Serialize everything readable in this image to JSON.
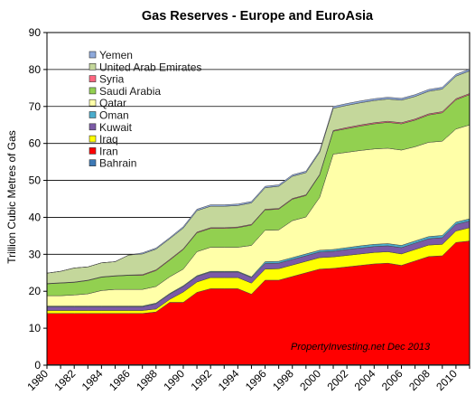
{
  "chart_data": {
    "type": "area",
    "stacked": true,
    "title": "Gas Reserves - Europe and EuroAsia",
    "ylabel": "Trillion Cubic Metres of Gas",
    "xlabel": "",
    "annotation": "PropertyInvesting.net Dec 2013",
    "grid": true,
    "legend_position": "top-left",
    "xlim": [
      1980,
      2011
    ],
    "ylim": [
      0,
      90
    ],
    "x_ticks": [
      "1980",
      "1982",
      "1984",
      "1986",
      "1988",
      "1990",
      "1992",
      "1994",
      "1996",
      "1998",
      "2000",
      "2002",
      "2004",
      "2006",
      "2008",
      "2010"
    ],
    "y_ticks": [
      "0",
      "10",
      "20",
      "30",
      "40",
      "50",
      "60",
      "70",
      "80",
      "90"
    ],
    "legend_order": [
      "Yemen",
      "United Arab Emirates",
      "Syria",
      "Saudi Arabia",
      "Qatar",
      "Oman",
      "Kuwait",
      "Iraq",
      "Iran",
      "Bahrain"
    ],
    "x": [
      1980,
      1981,
      1982,
      1983,
      1984,
      1985,
      1986,
      1987,
      1988,
      1989,
      1990,
      1991,
      1992,
      1993,
      1994,
      1995,
      1996,
      1997,
      1998,
      1999,
      2000,
      2001,
      2002,
      2003,
      2004,
      2005,
      2006,
      2007,
      2008,
      2009,
      2010,
      2011
    ],
    "series": [
      {
        "name": "Bahrain",
        "color": "#3d79b6",
        "values": [
          0.2,
          0.2,
          0.2,
          0.2,
          0.2,
          0.2,
          0.2,
          0.2,
          0.2,
          0.2,
          0.2,
          0.2,
          0.2,
          0.2,
          0.2,
          0.2,
          0.2,
          0.2,
          0.2,
          0.2,
          0.2,
          0.2,
          0.2,
          0.2,
          0.2,
          0.2,
          0.2,
          0.2,
          0.2,
          0.2,
          0.2,
          0.2
        ]
      },
      {
        "name": "Iran",
        "color": "#ff0000",
        "values": [
          13.8,
          13.8,
          13.8,
          13.8,
          13.8,
          13.8,
          13.8,
          13.8,
          14.2,
          16.8,
          16.8,
          19.5,
          20.5,
          20.5,
          20.5,
          19.0,
          22.8,
          22.8,
          23.8,
          24.8,
          25.8,
          26.0,
          26.4,
          26.8,
          27.2,
          27.4,
          26.8,
          28.0,
          29.2,
          29.4,
          33.0,
          33.4
        ]
      },
      {
        "name": "Iraq",
        "color": "#ffff00",
        "values": [
          0.8,
          0.8,
          0.8,
          0.8,
          0.8,
          0.8,
          0.8,
          0.8,
          0.8,
          0.8,
          2.8,
          2.8,
          3.0,
          3.0,
          3.0,
          3.0,
          3.0,
          3.1,
          3.1,
          3.1,
          3.1,
          3.1,
          3.1,
          3.1,
          3.1,
          3.1,
          3.1,
          3.1,
          3.1,
          3.1,
          3.1,
          3.6
        ]
      },
      {
        "name": "Kuwait",
        "color": "#7b5aa6",
        "values": [
          1.0,
          1.0,
          1.0,
          1.0,
          1.0,
          1.0,
          1.0,
          1.0,
          1.4,
          1.4,
          1.5,
          1.5,
          1.5,
          1.5,
          1.5,
          1.5,
          1.5,
          1.5,
          1.5,
          1.5,
          1.5,
          1.5,
          1.6,
          1.6,
          1.6,
          1.6,
          1.7,
          1.7,
          1.7,
          1.8,
          1.8,
          1.8
        ]
      },
      {
        "name": "Oman",
        "color": "#4aaccc",
        "values": [
          0.2,
          0.2,
          0.2,
          0.2,
          0.2,
          0.2,
          0.2,
          0.2,
          0.2,
          0.2,
          0.2,
          0.2,
          0.2,
          0.2,
          0.2,
          0.2,
          0.5,
          0.5,
          0.5,
          0.5,
          0.5,
          0.5,
          0.5,
          0.6,
          0.6,
          0.6,
          0.6,
          0.6,
          0.6,
          0.6,
          0.6,
          0.6
        ]
      },
      {
        "name": "Qatar",
        "color": "#ffffa8",
        "values": [
          2.8,
          2.8,
          3.0,
          3.3,
          4.2,
          4.5,
          4.5,
          4.5,
          4.5,
          4.5,
          4.5,
          6.5,
          6.5,
          6.5,
          6.5,
          8.5,
          8.5,
          8.5,
          10.0,
          10.0,
          14.3,
          25.8,
          25.8,
          25.8,
          25.8,
          25.8,
          25.8,
          25.5,
          25.5,
          25.5,
          25.2,
          25.4
        ]
      },
      {
        "name": "Saudi Arabia",
        "color": "#92d050",
        "values": [
          3.2,
          3.4,
          3.4,
          3.6,
          3.6,
          3.6,
          3.8,
          3.8,
          4.3,
          4.5,
          5.3,
          5.1,
          5.1,
          5.1,
          5.3,
          5.5,
          5.5,
          5.6,
          5.8,
          5.8,
          6.0,
          6.2,
          6.4,
          6.6,
          6.8,
          7.0,
          7.1,
          7.2,
          7.4,
          7.7,
          7.9,
          8.2
        ]
      },
      {
        "name": "Syria",
        "color": "#ff6680",
        "values": [
          0.1,
          0.1,
          0.1,
          0.1,
          0.1,
          0.1,
          0.1,
          0.2,
          0.2,
          0.2,
          0.2,
          0.2,
          0.2,
          0.2,
          0.2,
          0.2,
          0.2,
          0.2,
          0.2,
          0.2,
          0.2,
          0.2,
          0.3,
          0.3,
          0.3,
          0.3,
          0.3,
          0.3,
          0.3,
          0.3,
          0.3,
          0.3
        ]
      },
      {
        "name": "United Arab Emirates",
        "color": "#c4d79b",
        "values": [
          2.8,
          3.1,
          3.8,
          3.6,
          3.8,
          3.8,
          5.4,
          5.6,
          5.6,
          5.6,
          5.6,
          5.8,
          5.8,
          5.8,
          5.8,
          5.8,
          5.8,
          6.0,
          6.0,
          6.0,
          6.0,
          6.0,
          6.0,
          6.0,
          6.0,
          6.0,
          6.1,
          6.1,
          6.1,
          6.1,
          6.1,
          6.1
        ]
      },
      {
        "name": "Yemen",
        "color": "#8ea9db",
        "values": [
          0.0,
          0.0,
          0.0,
          0.0,
          0.0,
          0.0,
          0.0,
          0.3,
          0.3,
          0.3,
          0.4,
          0.4,
          0.4,
          0.4,
          0.4,
          0.4,
          0.4,
          0.4,
          0.4,
          0.4,
          0.4,
          0.5,
          0.5,
          0.5,
          0.5,
          0.5,
          0.5,
          0.5,
          0.5,
          0.5,
          0.5,
          0.5
        ]
      }
    ]
  }
}
